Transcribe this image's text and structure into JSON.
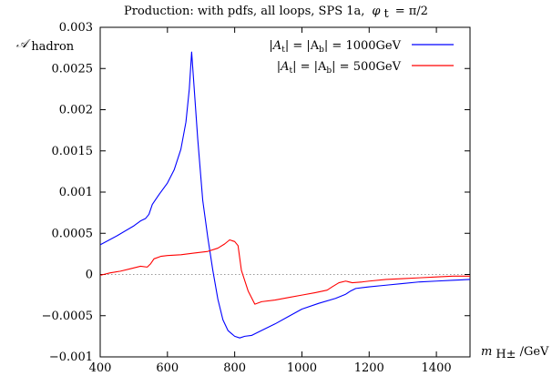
{
  "chart_data": {
    "type": "line",
    "title": {
      "text": "Production: with pdfs, all loops, SPS 1a,",
      "symbol": "φ",
      "subscript": "t",
      "suffix": "= π/2"
    },
    "ylabel": {
      "symbol": "𝒜",
      "subscript": "hadron"
    },
    "xlabel": {
      "symbol": "m",
      "subscript": "H±",
      "suffix": "/GeV"
    },
    "xlim": [
      400,
      1500
    ],
    "ylim": [
      -0.001,
      0.003
    ],
    "xticks": [
      400,
      600,
      800,
      1000,
      1200,
      1400
    ],
    "yticks": [
      -0.001,
      -0.0005,
      0,
      0.0005,
      0.001,
      0.0015,
      0.002,
      0.0025,
      0.003
    ],
    "ytick_labels": [
      "−0.001",
      "−0.0005",
      "0",
      "0.0005",
      "0.001",
      "0.0015",
      "0.002",
      "0.0025",
      "0.003"
    ],
    "xtick_labels": [
      "400",
      "600",
      "800",
      "1000",
      "1200",
      "1400"
    ],
    "zero_line": {
      "y": 0,
      "color": "#999999",
      "style": "dotted"
    },
    "grid": false,
    "legend_position": "top-right",
    "series": [
      {
        "name": "|A_t| = |A_b| = 1000GeV",
        "legend": {
          "lhs": "|A",
          "lsub": "t",
          "mid": "| = |A",
          "rsub": "b",
          "rhs": "| = 1000GeV"
        },
        "color": "#0000ff",
        "x": [
          400,
          450,
          500,
          520,
          535,
          545,
          555,
          575,
          600,
          620,
          640,
          655,
          665,
          672,
          678,
          690,
          705,
          720,
          735,
          750,
          765,
          780,
          800,
          815,
          830,
          850,
          880,
          920,
          960,
          1000,
          1050,
          1100,
          1130,
          1145,
          1160,
          1180,
          1200,
          1250,
          1300,
          1350,
          1400,
          1450,
          1500
        ],
        "y": [
          0.00036,
          0.00047,
          0.00059,
          0.00065,
          0.00068,
          0.00073,
          0.00085,
          0.00097,
          0.00111,
          0.00127,
          0.00152,
          0.00185,
          0.00225,
          0.0027,
          0.00235,
          0.00165,
          0.0009,
          0.00045,
          5e-05,
          -0.0003,
          -0.00055,
          -0.00068,
          -0.00075,
          -0.00077,
          -0.00075,
          -0.00074,
          -0.00068,
          -0.0006,
          -0.00051,
          -0.00042,
          -0.00035,
          -0.00029,
          -0.00024,
          -0.0002,
          -0.00017,
          -0.00016,
          -0.00015,
          -0.00013,
          -0.00011,
          -9e-05,
          -8e-05,
          -7e-05,
          -6e-05
        ]
      },
      {
        "name": "|A_t| = |A_b| = 500GeV",
        "legend": {
          "lhs": "|A",
          "lsub": "t",
          "mid": "| = |A",
          "rsub": "b",
          "rhs": "| = 500GeV"
        },
        "color": "#ff0000",
        "x": [
          400,
          430,
          460,
          490,
          520,
          540,
          550,
          560,
          580,
          600,
          640,
          680,
          720,
          750,
          770,
          785,
          800,
          810,
          820,
          840,
          860,
          880,
          920,
          960,
          1000,
          1040,
          1075,
          1090,
          1110,
          1130,
          1150,
          1180,
          1200,
          1250,
          1300,
          1350,
          1400,
          1450,
          1500
        ],
        "y": [
          -1e-05,
          2e-05,
          4e-05,
          7e-05,
          0.0001,
          9e-05,
          0.00013,
          0.00019,
          0.00022,
          0.00023,
          0.00024,
          0.00026,
          0.00028,
          0.00032,
          0.00037,
          0.00042,
          0.0004,
          0.00035,
          5e-05,
          -0.0002,
          -0.00036,
          -0.00033,
          -0.00031,
          -0.00028,
          -0.00025,
          -0.00022,
          -0.00019,
          -0.00015,
          -0.0001,
          -8e-05,
          -0.0001,
          -9e-05,
          -8e-05,
          -6e-05,
          -5e-05,
          -4e-05,
          -3e-05,
          -2e-05,
          -2e-05
        ]
      }
    ]
  }
}
